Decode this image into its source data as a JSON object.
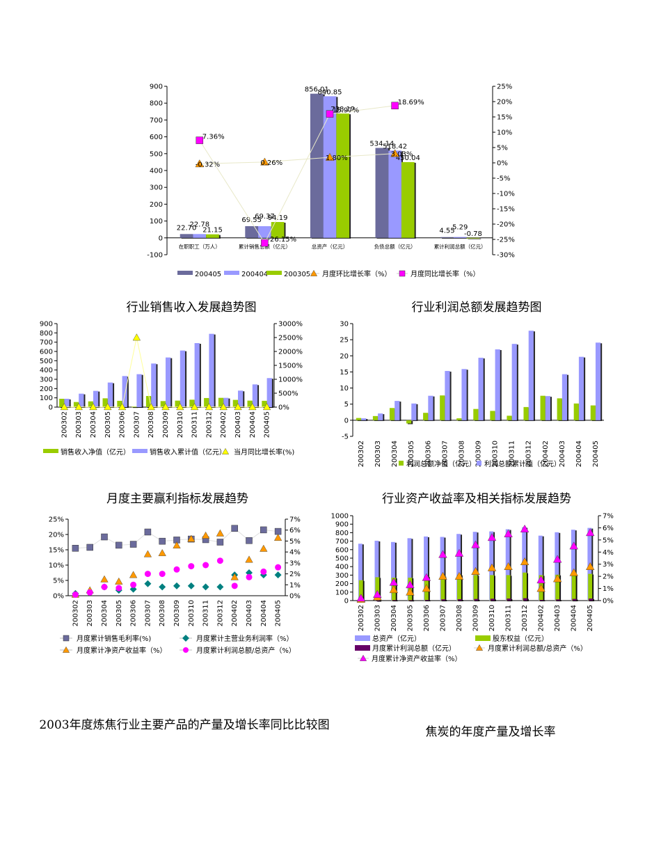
{
  "charts": [
    {
      "id": "c1",
      "type": "bar",
      "title": "",
      "categories": [
        "在职职工（万人）",
        "累计销售总额（亿元）",
        "总资产（亿元）",
        "负债总额（亿元）",
        "累计利润总额（亿元）"
      ],
      "series": [
        {
          "name": "200405",
          "color": "#6b6b9c",
          "values": [
            22.7,
            69.55,
            856.01,
            534.14,
            4.55
          ]
        },
        {
          "name": "200404",
          "color": "#9999ff",
          "values": [
            22.78,
            69.37,
            840.85,
            518.42,
            5.29
          ]
        },
        {
          "name": "200305",
          "color": "#99cc00",
          "values": [
            21.15,
            94.19,
            738.12,
            450.04,
            -0.78
          ]
        }
      ],
      "lines": [
        {
          "name": "月度环比增长率（%）",
          "marker": "triangle",
          "color": "#ff9900",
          "values": [
            -0.32,
            0.26,
            1.8,
            3.03,
            null
          ]
        },
        {
          "name": "月度同比增长率（%）",
          "marker": "square",
          "color": "#ff00ff",
          "values": [
            7.36,
            -26.15,
            15.97,
            18.69,
            null
          ]
        }
      ],
      "bar_labels": [
        [
          "22.70",
          "69.55",
          "856.01",
          "534.14",
          "4.55"
        ],
        [
          "22.78",
          "69.37",
          "840.85",
          "518.42",
          "5.29"
        ],
        [
          "21.15",
          "94.19",
          "738.12",
          "450.04",
          "-0.78"
        ]
      ],
      "line_labels": [
        [
          "-0.32%",
          "0.26%",
          "1.80%",
          "3.03%",
          ""
        ],
        [
          "7.36%",
          "-26.15%",
          "15.97%",
          "18.69%",
          ""
        ]
      ],
      "y_left": {
        "min": -100,
        "max": 900,
        "step": 100,
        "ticks": [
          "-100",
          "0",
          "100",
          "200",
          "300",
          "400",
          "500",
          "600",
          "700",
          "800",
          "900"
        ]
      },
      "y_right": {
        "min": -30,
        "max": 25,
        "step": 5,
        "ticks": [
          "-30%",
          "-25%",
          "-20%",
          "-15%",
          "-10%",
          "-5%",
          "0%",
          "5%",
          "10%",
          "15%",
          "20%",
          "25%"
        ]
      },
      "grid": false,
      "legend_position": "bottom"
    },
    {
      "id": "c2",
      "type": "bar",
      "title": "行业销售收入发展趋势图",
      "categories": [
        "200302",
        "200303",
        "200304",
        "200305",
        "200306",
        "200307",
        "200308",
        "200309",
        "200310",
        "200311",
        "200312",
        "200402",
        "200403",
        "200404",
        "200405"
      ],
      "series": [
        {
          "name": "销售收入净值（亿元）",
          "color": "#99cc00",
          "values": [
            90,
            55,
            62,
            95,
            68,
            5,
            120,
            65,
            70,
            80,
            98,
            100,
            78,
            70,
            68
          ]
        },
        {
          "name": "销售收入累计值（亿元）",
          "color": "#9999ff",
          "values": [
            90,
            145,
            175,
            265,
            335,
            355,
            470,
            535,
            610,
            690,
            790,
            100,
            178,
            245,
            313
          ]
        }
      ],
      "lines": [
        {
          "name": "当月同比增长率(%)",
          "marker": "triangle",
          "color": "#ffff00",
          "values": [
            5,
            5,
            5,
            5,
            5,
            2500,
            5,
            5,
            5,
            5,
            5,
            5,
            5,
            5,
            5
          ]
        }
      ],
      "y_left": {
        "min": 0,
        "max": 900,
        "step": 100,
        "ticks": [
          "0",
          "100",
          "200",
          "300",
          "400",
          "500",
          "600",
          "700",
          "800",
          "900"
        ]
      },
      "y_right": {
        "min": 0,
        "max": 3000,
        "step": 500,
        "ticks": [
          "0%",
          "500%",
          "1000%",
          "1500%",
          "2000%",
          "2500%",
          "3000%"
        ]
      },
      "grid": false,
      "legend_position": "bottom"
    },
    {
      "id": "c3",
      "type": "bar",
      "title": "行业利润总额发展趋势图",
      "categories": [
        "200302",
        "200303",
        "200304",
        "200305",
        "200306",
        "200307",
        "200308",
        "200309",
        "200310",
        "200311",
        "200312",
        "200402",
        "200403",
        "200404",
        "200405"
      ],
      "series": [
        {
          "name": "利润总额净值（亿元）",
          "color": "#99cc00",
          "values": [
            0.7,
            1.3,
            3.8,
            -1.0,
            2.3,
            7.7,
            0.6,
            3.5,
            2.9,
            1.4,
            4.1,
            7.6,
            6.8,
            5.2,
            4.6
          ]
        },
        {
          "name": "利润总额累计值（亿元）",
          "color": "#9999ff",
          "values": [
            0.6,
            2.1,
            6.0,
            5.2,
            7.6,
            15.3,
            15.9,
            19.4,
            22.0,
            23.7,
            27.8,
            7.5,
            14.3,
            19.7,
            24.1
          ]
        }
      ],
      "lines": [],
      "y_left": {
        "min": -5,
        "max": 30,
        "step": 5,
        "ticks": [
          "-5",
          "0",
          "5",
          "10",
          "15",
          "20",
          "25",
          "30"
        ]
      },
      "grid": false,
      "legend_position": "bottom"
    },
    {
      "id": "c4",
      "type": "line",
      "title": "月度主要赢利指标发展趋势",
      "categories": [
        "200302",
        "200303",
        "200304",
        "200305",
        "200306",
        "200307",
        "200308",
        "200309",
        "200310",
        "200311",
        "200312",
        "200402",
        "200403",
        "200404",
        "200405"
      ],
      "series": [
        {
          "name": "月度累计销售毛利率(%)",
          "axis": "left",
          "marker": "square",
          "color": "#6b6b9c",
          "values": [
            15.5,
            15.8,
            19.2,
            16.5,
            16.8,
            20.8,
            17.8,
            18.2,
            18.5,
            18.3,
            17.5,
            22.0,
            18.0,
            21.5,
            21.0
          ]
        },
        {
          "name": "月度累计主营业务利润率（%）",
          "axis": "right",
          "marker": "diamond",
          "color": "#008080",
          "values": [
            0.2,
            0.3,
            0.8,
            0.5,
            0.6,
            1.1,
            0.8,
            0.9,
            0.9,
            0.8,
            0.8,
            1.9,
            2.1,
            1.9,
            1.9
          ]
        },
        {
          "name": "月度累计净资产收益率（%）",
          "axis": "right",
          "marker": "triangle",
          "color": "#ff9900",
          "values": [
            0.1,
            0.5,
            1.5,
            1.3,
            1.9,
            3.8,
            3.9,
            4.6,
            5.2,
            5.5,
            5.7,
            1.7,
            3.3,
            4.3,
            5.3
          ]
        },
        {
          "name": "月度累计利润总额/总资产（%）",
          "axis": "right",
          "marker": "circle",
          "color": "#ff00ff",
          "values": [
            0.1,
            0.3,
            0.8,
            0.7,
            1.0,
            2.0,
            2.0,
            2.4,
            2.7,
            2.8,
            3.2,
            0.9,
            1.7,
            2.2,
            2.6
          ]
        }
      ],
      "y_left": {
        "min": 0,
        "max": 25,
        "step": 5,
        "ticks": [
          "0%",
          "5%",
          "10%",
          "15%",
          "20%",
          "25%"
        ]
      },
      "y_right": {
        "min": 0,
        "max": 7,
        "step": 1,
        "ticks": [
          "0%",
          "1%",
          "2%",
          "3%",
          "4%",
          "5%",
          "6%",
          "7%"
        ]
      },
      "grid": false,
      "legend_position": "bottom"
    },
    {
      "id": "c5",
      "type": "bar",
      "title": "行业资产收益率及相关指标发展趋势",
      "categories": [
        "200302",
        "200303",
        "200304",
        "200305",
        "200306",
        "200307",
        "200308",
        "200309",
        "200310",
        "200311",
        "200312",
        "200402",
        "200403",
        "200404",
        "200405"
      ],
      "series": [
        {
          "name": "总资产（亿元）",
          "color": "#9999ff",
          "values": [
            670,
            705,
            690,
            735,
            755,
            750,
            785,
            810,
            815,
            840,
            865,
            765,
            805,
            835,
            856
          ]
        },
        {
          "name": "股东权益（亿元）",
          "color": "#99cc00",
          "values": [
            240,
            275,
            270,
            270,
            285,
            290,
            305,
            300,
            300,
            300,
            330,
            300,
            305,
            310,
            315
          ]
        },
        {
          "name": "月度累计利润总额（亿元）",
          "color": "#660066",
          "values": [
            1,
            2,
            6,
            5,
            8,
            15,
            16,
            19,
            22,
            24,
            28,
            8,
            14,
            20,
            24
          ]
        }
      ],
      "lines": [
        {
          "name": "月度累计利润总额/总资产（%）",
          "marker": "triangle",
          "color": "#ff9900",
          "values": [
            0.1,
            0.3,
            0.9,
            0.7,
            1.0,
            2.0,
            2.0,
            2.4,
            2.7,
            2.8,
            3.2,
            1.0,
            1.8,
            2.3,
            2.8
          ]
        },
        {
          "name": "月度累计净资产收益率（%）",
          "marker": "triangle",
          "color": "#ff00ff",
          "values": [
            0.2,
            0.5,
            1.5,
            1.3,
            1.9,
            3.8,
            3.9,
            4.6,
            5.2,
            5.5,
            5.9,
            1.7,
            3.4,
            4.5,
            5.6
          ]
        }
      ],
      "y_left": {
        "min": 0,
        "max": 1000,
        "step": 100,
        "ticks": [
          "0",
          "100",
          "200",
          "300",
          "400",
          "500",
          "600",
          "700",
          "800",
          "900",
          "1000"
        ]
      },
      "y_right": {
        "min": 0,
        "max": 7,
        "step": 1,
        "ticks": [
          "0%",
          "1%",
          "2%",
          "3%",
          "4%",
          "5%",
          "6%",
          "7%"
        ]
      },
      "grid": false,
      "legend_position": "bottom"
    }
  ],
  "bottom_titles": {
    "left": "2003年度炼焦行业主要产品的产量及增长率同比比较图",
    "right": "焦炭的年度产量及增长率"
  }
}
